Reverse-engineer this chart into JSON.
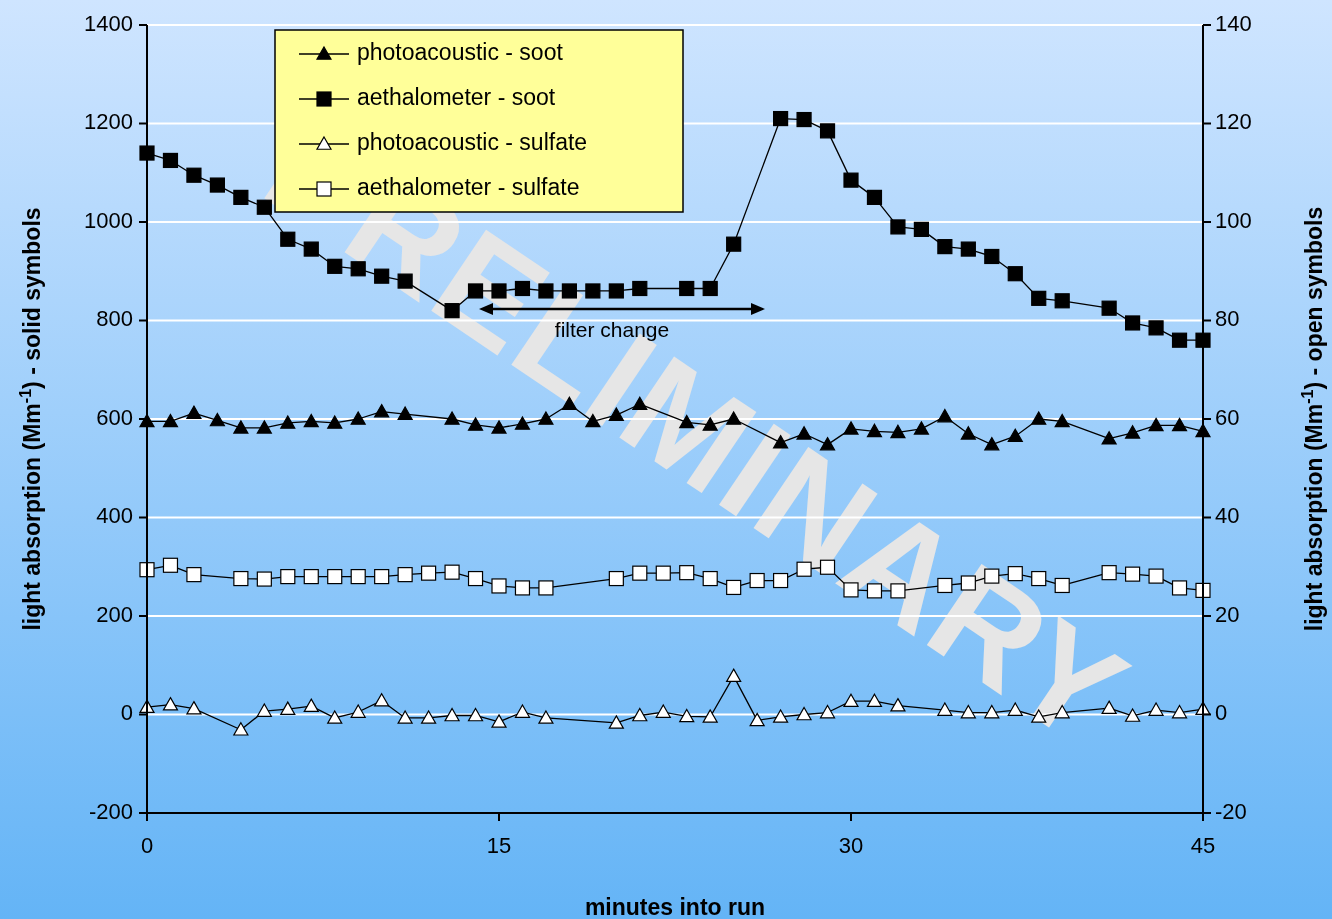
{
  "chart_data": {
    "type": "line",
    "xlabel": "minutes into run",
    "ylabel": "light absorption (Mm$^{-1}$) - solid symbols",
    "y2label": "light absorption (Mm$^{-1}$) - open symbols",
    "xlim": [
      0,
      45
    ],
    "xticks": [
      0,
      15,
      30,
      45
    ],
    "ylim": [
      -200,
      1400
    ],
    "yticks": [
      -200,
      0,
      200,
      400,
      600,
      800,
      1000,
      1200,
      1400
    ],
    "y2lim": [
      -20,
      140
    ],
    "y2ticks": [
      -20,
      0,
      20,
      40,
      60,
      80,
      100,
      120,
      140
    ],
    "grid": "y",
    "legend": "top left",
    "annotations": [
      "filter change",
      "PRELIMINARY"
    ],
    "series": [
      {
        "name": "photoacoustic - soot",
        "color": "#000000",
        "marker": "triangle",
        "x": [
          0,
          1,
          2,
          3,
          4,
          5,
          6,
          7,
          8,
          9,
          10,
          11,
          13,
          14,
          15,
          16,
          17,
          18,
          19,
          20,
          21,
          23,
          24,
          25,
          27,
          28,
          29,
          30,
          31,
          32,
          33,
          34,
          35,
          36,
          37,
          38,
          39,
          41,
          42,
          43,
          44,
          45
        ],
        "values": [
          595,
          595,
          612,
          597,
          582,
          582,
          592,
          595,
          592,
          600,
          615,
          610,
          600,
          588,
          582,
          590,
          600,
          630,
          595,
          608,
          630,
          593,
          588,
          600,
          552,
          570,
          548,
          580,
          575,
          573,
          580,
          605,
          570,
          548,
          565,
          600,
          595,
          560,
          572,
          587,
          587,
          575
        ]
      },
      {
        "name": "aethalometer - soot",
        "color": "#000000",
        "marker": "square",
        "x": [
          0,
          1,
          2,
          3,
          4,
          5,
          6,
          7,
          8,
          9,
          10,
          11,
          13,
          14,
          15,
          16,
          17,
          18,
          19,
          20,
          21,
          23,
          24,
          25,
          27,
          28,
          29,
          30,
          31,
          32,
          33,
          34,
          35,
          36,
          37,
          38,
          39,
          41,
          42,
          43,
          44,
          45
        ],
        "values": [
          1140,
          1125,
          1095,
          1075,
          1050,
          1030,
          965,
          945,
          910,
          905,
          890,
          880,
          820,
          860,
          860,
          865,
          860,
          860,
          860,
          860,
          865,
          865,
          865,
          955,
          1210,
          1208,
          1185,
          1085,
          1050,
          990,
          985,
          950,
          945,
          930,
          895,
          845,
          840,
          825,
          795,
          785,
          760,
          760
        ]
      },
      {
        "name": "photoacoustic - sulfate",
        "color": "#ffffff",
        "marker": "triangle",
        "axis": "y2",
        "x": [
          0,
          1,
          2,
          4,
          5,
          6,
          7,
          8,
          9,
          10,
          11,
          12,
          13,
          14,
          15,
          16,
          17,
          20,
          21,
          22,
          23,
          24,
          25,
          26,
          27,
          28,
          29,
          30,
          31,
          32,
          34,
          35,
          36,
          37,
          38,
          39,
          41,
          42,
          43,
          44,
          45
        ],
        "values": [
          1.5,
          2.0,
          1.2,
          -3.1,
          0.7,
          1.1,
          1.7,
          -0.7,
          0.5,
          2.8,
          -0.7,
          -0.7,
          -0.2,
          -0.2,
          -1.5,
          0.5,
          -0.7,
          -1.7,
          -0.2,
          0.5,
          -0.4,
          -0.5,
          7.8,
          -1.2,
          -0.5,
          0,
          0.4,
          2.7,
          2.7,
          1.8,
          0.9,
          0.4,
          0.4,
          0.9,
          -0.5,
          0.4,
          1.3,
          -0.3,
          0.9,
          0.4,
          1.1
        ]
      },
      {
        "name": "aethalometer - sulfate",
        "color": "#ffffff",
        "marker": "square",
        "axis": "y2",
        "x": [
          0,
          1,
          2,
          4,
          5,
          6,
          7,
          8,
          9,
          10,
          11,
          12,
          13,
          14,
          15,
          16,
          17,
          20,
          21,
          22,
          23,
          24,
          25,
          26,
          27,
          28,
          29,
          30,
          31,
          32,
          34,
          35,
          36,
          37,
          38,
          39,
          41,
          42,
          43,
          44,
          45
        ],
        "values": [
          29.4,
          30.3,
          28.4,
          27.6,
          27.5,
          28.0,
          28.0,
          28.0,
          28.0,
          28.0,
          28.4,
          28.7,
          28.9,
          27.6,
          26.1,
          25.7,
          25.7,
          27.6,
          28.7,
          28.7,
          28.8,
          27.6,
          25.8,
          27.2,
          27.2,
          29.5,
          29.9,
          25.3,
          25.1,
          25.1,
          26.2,
          26.7,
          28.1,
          28.6,
          27.6,
          26.2,
          28.8,
          28.5,
          28.1,
          25.7,
          25.2
        ]
      }
    ]
  }
}
